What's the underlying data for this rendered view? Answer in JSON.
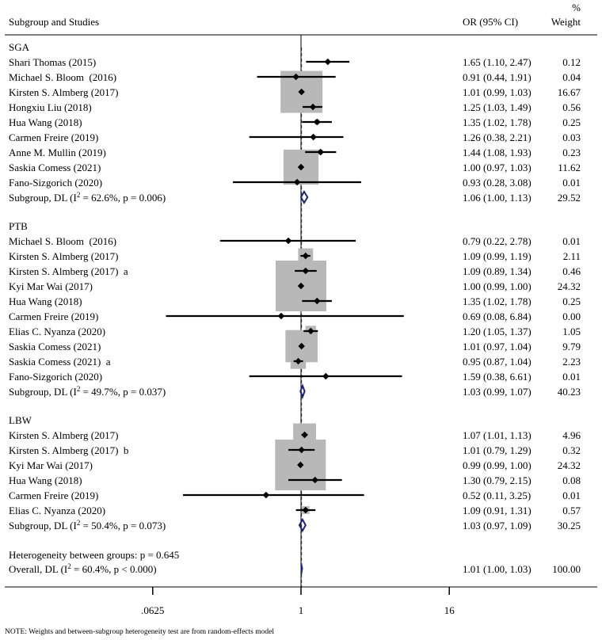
{
  "chart_data": {
    "type": "forest",
    "scale": "log2",
    "xlim": [
      0.0625,
      16
    ],
    "ticks": [
      {
        "value": 0.0625,
        "label": ".0625"
      },
      {
        "value": 1,
        "label": "1"
      },
      {
        "value": 16,
        "label": "16"
      }
    ],
    "headers": {
      "study": "Subgroup and Studies",
      "or": "OR (95% CI)",
      "weight_pct": "%",
      "weight": "Weight"
    },
    "groups": [
      {
        "name": "SGA",
        "studies": [
          {
            "label": "Shari Thomas (2015)",
            "or": 1.65,
            "lo": 1.1,
            "hi": 2.47,
            "ci_text": "1.65 (1.10, 2.47)",
            "weight": 0.12,
            "weight_text": "0.12"
          },
          {
            "label": "Michael S. Bloom  (2016)",
            "or": 0.91,
            "lo": 0.44,
            "hi": 1.91,
            "ci_text": "0.91 (0.44, 1.91)",
            "weight": 0.04,
            "weight_text": "0.04"
          },
          {
            "label": "Kirsten S. Almberg (2017)",
            "or": 1.01,
            "lo": 0.99,
            "hi": 1.03,
            "ci_text": "1.01 (0.99, 1.03)",
            "weight": 16.67,
            "weight_text": "16.67"
          },
          {
            "label": "Hongxiu Liu (2018)",
            "or": 1.25,
            "lo": 1.03,
            "hi": 1.49,
            "ci_text": "1.25 (1.03, 1.49)",
            "weight": 0.56,
            "weight_text": "0.56"
          },
          {
            "label": "Hua Wang (2018)",
            "or": 1.35,
            "lo": 1.02,
            "hi": 1.78,
            "ci_text": "1.35 (1.02, 1.78)",
            "weight": 0.25,
            "weight_text": "0.25"
          },
          {
            "label": "Carmen Freire (2019)",
            "or": 1.26,
            "lo": 0.38,
            "hi": 2.21,
            "ci_text": "1.26 (0.38, 2.21)",
            "weight": 0.03,
            "weight_text": "0.03"
          },
          {
            "label": "Anne M. Mullin (2019)",
            "or": 1.44,
            "lo": 1.08,
            "hi": 1.93,
            "ci_text": "1.44 (1.08, 1.93)",
            "weight": 0.23,
            "weight_text": "0.23"
          },
          {
            "label": "Saskia Comess (2021)",
            "or": 1.0,
            "lo": 0.97,
            "hi": 1.03,
            "ci_text": "1.00 (0.97, 1.03)",
            "weight": 11.62,
            "weight_text": "11.62"
          },
          {
            "label": "Fano-Sizgorich (2020)",
            "or": 0.93,
            "lo": 0.28,
            "hi": 3.08,
            "ci_text": "0.93 (0.28, 3.08)",
            "weight": 0.01,
            "weight_text": "0.01"
          }
        ],
        "subgroup": {
          "label_pre": "Subgroup, DL (I",
          "label_sup": "2",
          "label_post": " = 62.6%, p = 0.006)",
          "or": 1.06,
          "lo": 1.0,
          "hi": 1.13,
          "ci_text": "1.06 (1.00, 1.13)",
          "weight_text": "29.52"
        }
      },
      {
        "name": "PTB",
        "studies": [
          {
            "label": "Michael S. Bloom  (2016)",
            "or": 0.79,
            "lo": 0.22,
            "hi": 2.78,
            "ci_text": "0.79 (0.22, 2.78)",
            "weight": 0.01,
            "weight_text": "0.01"
          },
          {
            "label": "Kirsten S. Almberg (2017)",
            "or": 1.09,
            "lo": 0.99,
            "hi": 1.19,
            "ci_text": "1.09 (0.99, 1.19)",
            "weight": 2.11,
            "weight_text": "2.11"
          },
          {
            "label": "Kirsten S. Almberg (2017)  a",
            "or": 1.09,
            "lo": 0.89,
            "hi": 1.34,
            "ci_text": "1.09 (0.89, 1.34)",
            "weight": 0.46,
            "weight_text": "0.46"
          },
          {
            "label": "Kyi Mar Wai (2017)",
            "or": 1.0,
            "lo": 0.99,
            "hi": 1.0,
            "ci_text": "1.00 (0.99, 1.00)",
            "weight": 24.32,
            "weight_text": "24.32"
          },
          {
            "label": "Hua Wang (2018)",
            "or": 1.35,
            "lo": 1.02,
            "hi": 1.78,
            "ci_text": "1.35 (1.02, 1.78)",
            "weight": 0.25,
            "weight_text": "0.25"
          },
          {
            "label": "Carmen Freire (2019)",
            "or": 0.69,
            "lo": 0.08,
            "hi": 6.84,
            "ci_text": "0.69 (0.08, 6.84)",
            "weight": 0.0,
            "weight_text": "0.00"
          },
          {
            "label": "Elias C. Nyanza (2020)",
            "or": 1.2,
            "lo": 1.05,
            "hi": 1.37,
            "ci_text": "1.20 (1.05, 1.37)",
            "weight": 1.05,
            "weight_text": "1.05"
          },
          {
            "label": "Saskia Comess (2021)",
            "or": 1.01,
            "lo": 0.97,
            "hi": 1.04,
            "ci_text": "1.01 (0.97, 1.04)",
            "weight": 9.79,
            "weight_text": "9.79"
          },
          {
            "label": "Saskia Comess (2021)  a",
            "or": 0.95,
            "lo": 0.87,
            "hi": 1.04,
            "ci_text": "0.95 (0.87, 1.04)",
            "weight": 2.23,
            "weight_text": "2.23"
          },
          {
            "label": "Fano-Sizgorich (2020)",
            "or": 1.59,
            "lo": 0.38,
            "hi": 6.61,
            "ci_text": "1.59 (0.38, 6.61)",
            "weight": 0.01,
            "weight_text": "0.01"
          }
        ],
        "subgroup": {
          "label_pre": "Subgroup, DL (I",
          "label_sup": "2",
          "label_post": " = 49.7%, p = 0.037)",
          "or": 1.03,
          "lo": 0.99,
          "hi": 1.07,
          "ci_text": "1.03 (0.99, 1.07)",
          "weight_text": "40.23"
        }
      },
      {
        "name": "LBW",
        "studies": [
          {
            "label": "Kirsten S. Almberg (2017)",
            "or": 1.07,
            "lo": 1.01,
            "hi": 1.13,
            "ci_text": "1.07 (1.01, 1.13)",
            "weight": 4.96,
            "weight_text": "4.96"
          },
          {
            "label": "Kirsten S. Almberg (2017)  b",
            "or": 1.01,
            "lo": 0.79,
            "hi": 1.29,
            "ci_text": "1.01 (0.79, 1.29)",
            "weight": 0.32,
            "weight_text": "0.32"
          },
          {
            "label": "Kyi Mar Wai (2017)",
            "or": 0.99,
            "lo": 0.99,
            "hi": 1.0,
            "ci_text": "0.99 (0.99, 1.00)",
            "weight": 24.32,
            "weight_text": "24.32"
          },
          {
            "label": "Hua Wang (2018)",
            "or": 1.3,
            "lo": 0.79,
            "hi": 2.15,
            "ci_text": "1.30 (0.79, 2.15)",
            "weight": 0.08,
            "weight_text": "0.08"
          },
          {
            "label": "Carmen Freire (2019)",
            "or": 0.52,
            "lo": 0.11,
            "hi": 3.25,
            "ci_text": "0.52 (0.11, 3.25)",
            "weight": 0.01,
            "weight_text": "0.01"
          },
          {
            "label": "Elias C. Nyanza (2020)",
            "or": 1.09,
            "lo": 0.91,
            "hi": 1.31,
            "ci_text": "1.09 (0.91, 1.31)",
            "weight": 0.57,
            "weight_text": "0.57"
          }
        ],
        "subgroup": {
          "label_pre": "Subgroup, DL (I",
          "label_sup": "2",
          "label_post": " = 50.4%, p = 0.073)",
          "or": 1.03,
          "lo": 0.97,
          "hi": 1.09,
          "ci_text": "1.03 (0.97, 1.09)",
          "weight_text": "30.25"
        }
      }
    ],
    "heterogeneity_text": "Heterogeneity between groups: p = 0.645",
    "overall": {
      "label_pre": "Overall, DL (I",
      "label_sup": "2",
      "label_post": " = 60.4%, p < 0.000)",
      "or": 1.01,
      "lo": 1.0,
      "hi": 1.03,
      "ci_text": "1.01 (1.00, 1.03)",
      "weight_text": "100.00"
    },
    "note": "NOTE: Weights and between-subgroup heterogeneity test are from random-effects model",
    "colors": {
      "box": "#b8b8b8",
      "line": "#000000",
      "diamond": "#1a237e",
      "axis": "#000000",
      "dashed": "#333333"
    }
  }
}
